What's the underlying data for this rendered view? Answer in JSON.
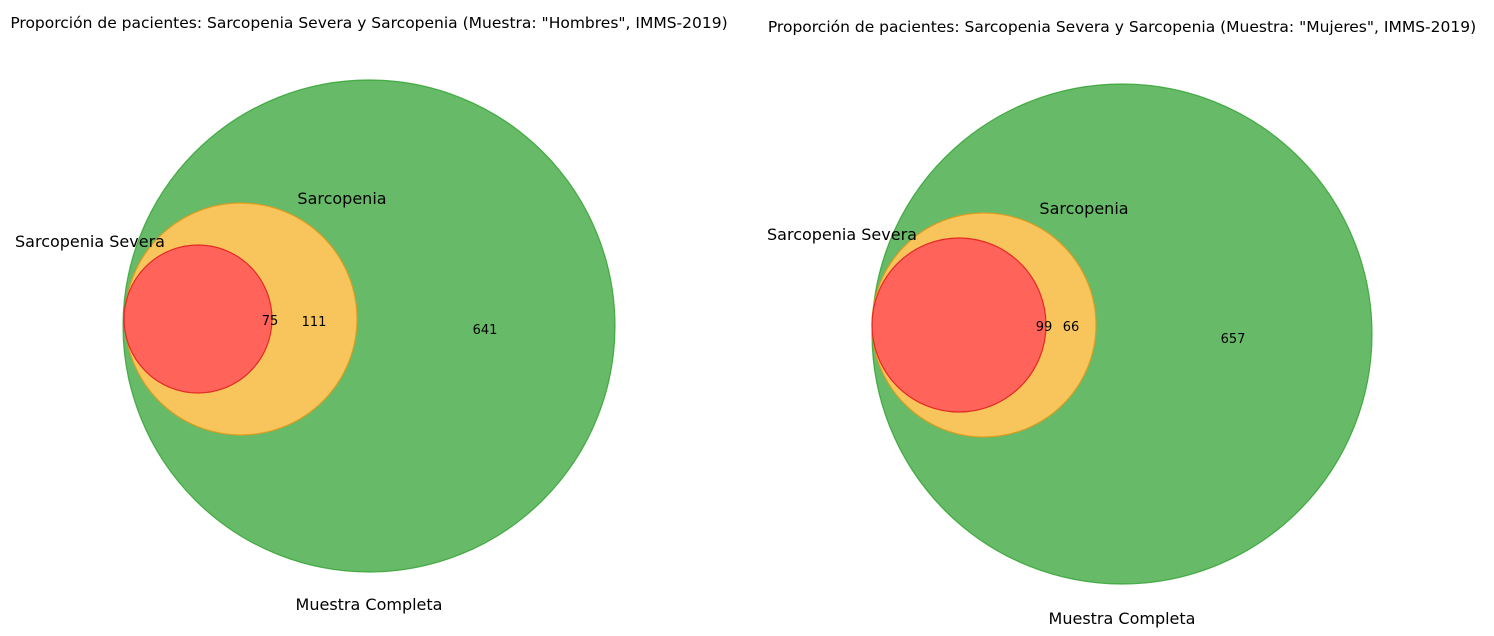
{
  "chart_data": [
    {
      "type": "venn",
      "title": "Proporción de pacientes: Sarcopenia Severa y Sarcopenia  (Muestra: \"Hombres\", IMMS-2019)",
      "sets": [
        {
          "name": "Muestra Completa",
          "color": "#2ca02c"
        },
        {
          "name": "Sarcopenia",
          "color": "#ffbf40"
        },
        {
          "name": "Sarcopenia Severa",
          "color": "#ff3b3b"
        }
      ],
      "regions": [
        {
          "sets": [
            "Sarcopenia Severa"
          ],
          "value": 75
        },
        {
          "sets": [
            "Sarcopenia"
          ],
          "value": 111
        },
        {
          "sets": [
            "Muestra Completa"
          ],
          "value": 641
        }
      ]
    },
    {
      "type": "venn",
      "title": "Proporción de pacientes: Sarcopenia Severa y Sarcopenia  (Muestra: \"Mujeres\", IMMS-2019)",
      "sets": [
        {
          "name": "Muestra Completa",
          "color": "#2ca02c"
        },
        {
          "name": "Sarcopenia",
          "color": "#ffbf40"
        },
        {
          "name": "Sarcopenia Severa",
          "color": "#ff3b3b"
        }
      ],
      "regions": [
        {
          "sets": [
            "Sarcopenia Severa"
          ],
          "value": 99
        },
        {
          "sets": [
            "Sarcopenia"
          ],
          "value": 66
        },
        {
          "sets": [
            "Muestra Completa"
          ],
          "value": 657
        }
      ]
    }
  ]
}
